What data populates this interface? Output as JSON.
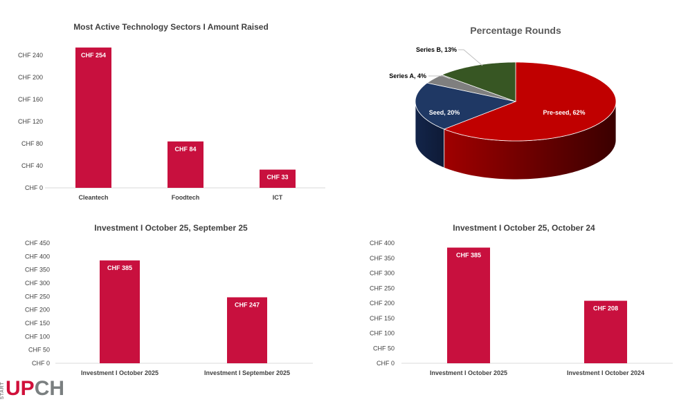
{
  "colors": {
    "bar": "#c8103e",
    "pre_seed": "#c00000",
    "seed": "#1f3864",
    "series_a": "#7f7f7f",
    "series_b": "#375623"
  },
  "logo": {
    "start": "START",
    "up": "UP",
    "ch": "CH"
  },
  "chart_data": [
    {
      "id": "sectors",
      "type": "bar",
      "title": "Most Active Technology Sectors I Amount Raised",
      "categories": [
        "Cleantech",
        "Foodtech",
        "ICT"
      ],
      "values": [
        254,
        84,
        33
      ],
      "data_labels": [
        "CHF 254",
        "CHF 84",
        "CHF 33"
      ],
      "yticks": [
        "CHF 0",
        "CHF 40",
        "CHF 80",
        "CHF 120",
        "CHF 160",
        "CHF 200",
        "CHF 240"
      ],
      "ylim": [
        0,
        280
      ],
      "ystep": 40,
      "grid": false
    },
    {
      "id": "rounds",
      "type": "pie",
      "title": "Percentage Rounds",
      "categories": [
        "Pre-seed",
        "Seed",
        "Series A",
        "Series B"
      ],
      "values": [
        62,
        20,
        4,
        13
      ],
      "data_labels": [
        "Pre-seed, 62%",
        "Seed, 20%",
        "Series A, 4%",
        "Series B, 13%"
      ],
      "style": "3d"
    },
    {
      "id": "sep",
      "type": "bar",
      "title": "Investment I October 25, September 25",
      "categories": [
        "Investment I October 2025",
        "Investment I September 2025"
      ],
      "values": [
        385,
        247
      ],
      "data_labels": [
        "CHF 385",
        "CHF 247"
      ],
      "yticks": [
        "CHF 0",
        "CHF 50",
        "CHF 100",
        "CHF 150",
        "CHF 200",
        "CHF 250",
        "CHF 300",
        "CHF 350",
        "CHF 400",
        "CHF 450"
      ],
      "ylim": [
        0,
        450
      ],
      "ystep": 50,
      "grid": false
    },
    {
      "id": "oct",
      "type": "bar",
      "title": "Investment I October 25, October 24",
      "categories": [
        "Investment I October 2025",
        "Investment I October 2024"
      ],
      "values": [
        385,
        208
      ],
      "data_labels": [
        "CHF 385",
        "CHF 208"
      ],
      "yticks": [
        "CHF 0",
        "CHF 50",
        "CHF 100",
        "CHF 150",
        "CHF 200",
        "CHF 250",
        "CHF 300",
        "CHF 350",
        "CHF 400"
      ],
      "ylim": [
        0,
        400
      ],
      "ystep": 50,
      "grid": false
    }
  ]
}
